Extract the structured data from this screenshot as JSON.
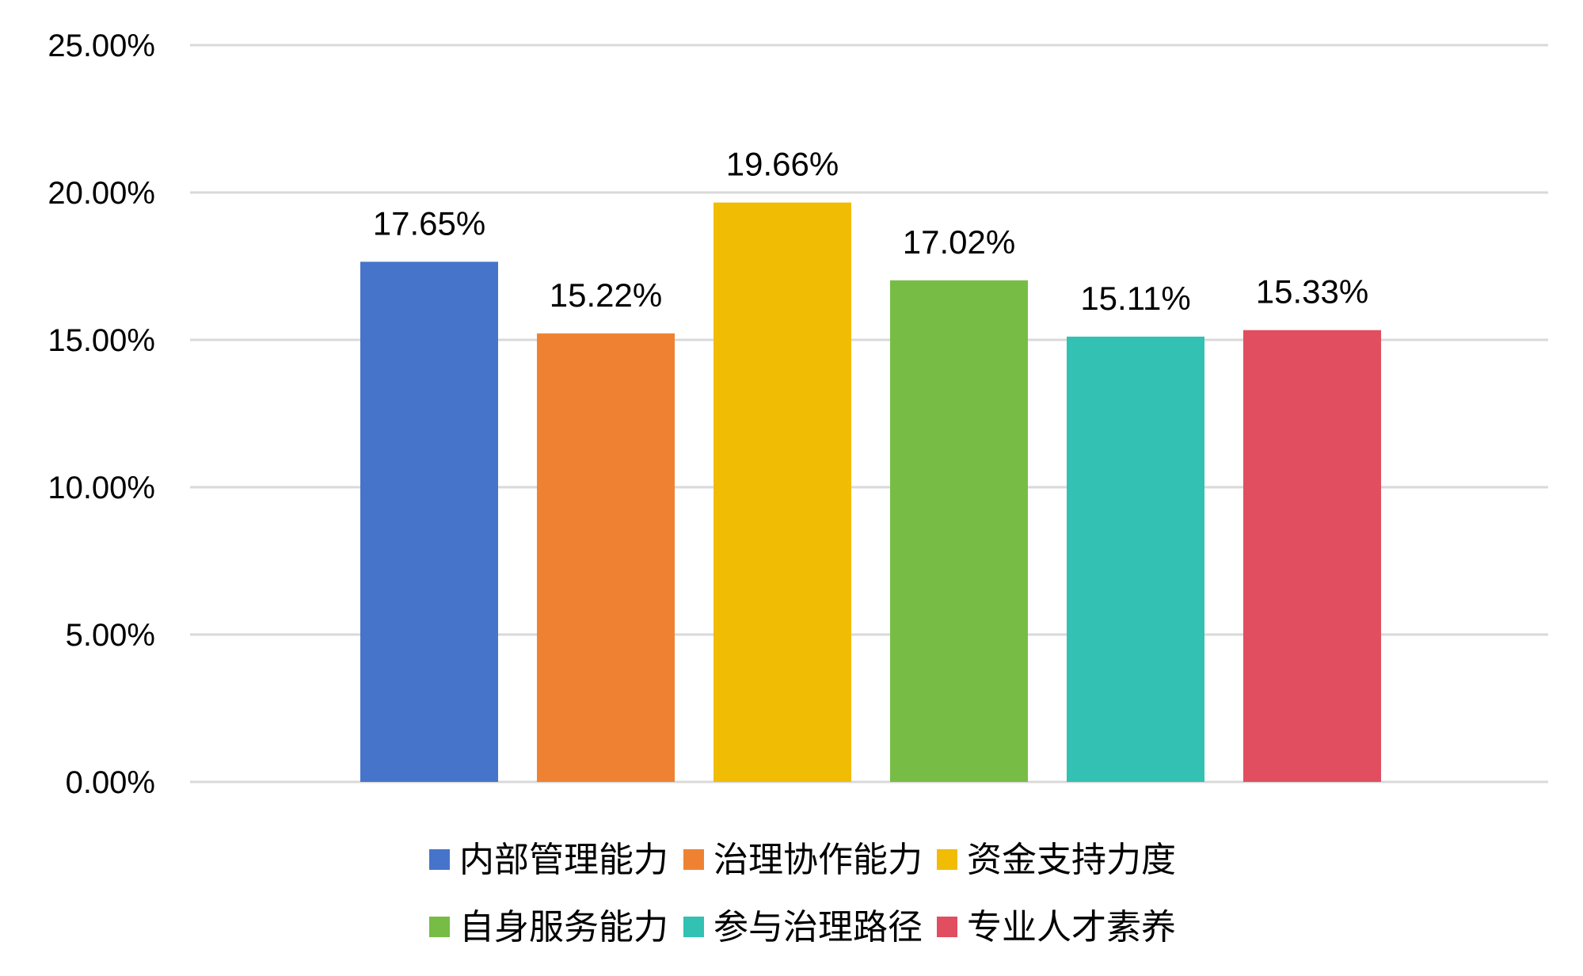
{
  "chart_data": {
    "type": "bar",
    "title": "",
    "xlabel": "",
    "ylabel": "",
    "ylim": [
      0,
      25
    ],
    "y_ticks": [
      0,
      5,
      10,
      15,
      20,
      25
    ],
    "y_tick_labels": [
      "0.00%",
      "5.00%",
      "10.00%",
      "15.00%",
      "20.00%",
      "25.00%"
    ],
    "grid": true,
    "legend_position": "bottom",
    "series": [
      {
        "name": "内部管理能力",
        "value": 17.65,
        "label": "17.65%",
        "color": "#4674CA"
      },
      {
        "name": "治理协作能力",
        "value": 15.22,
        "label": "15.22%",
        "color": "#EF8232"
      },
      {
        "name": "资金支持力度",
        "value": 19.66,
        "label": "19.66%",
        "color": "#F1BC04"
      },
      {
        "name": "自身服务能力",
        "value": 17.02,
        "label": "17.02%",
        "color": "#77BD45"
      },
      {
        "name": "参与治理路径",
        "value": 15.11,
        "label": "15.11%",
        "color": "#32C1B3"
      },
      {
        "name": "专业人才素养",
        "value": 15.33,
        "label": "15.33%",
        "color": "#E14E5F"
      }
    ]
  },
  "colors": {
    "gridline": "#D9D9D9",
    "text": "#000000",
    "background": "#FFFFFF"
  }
}
